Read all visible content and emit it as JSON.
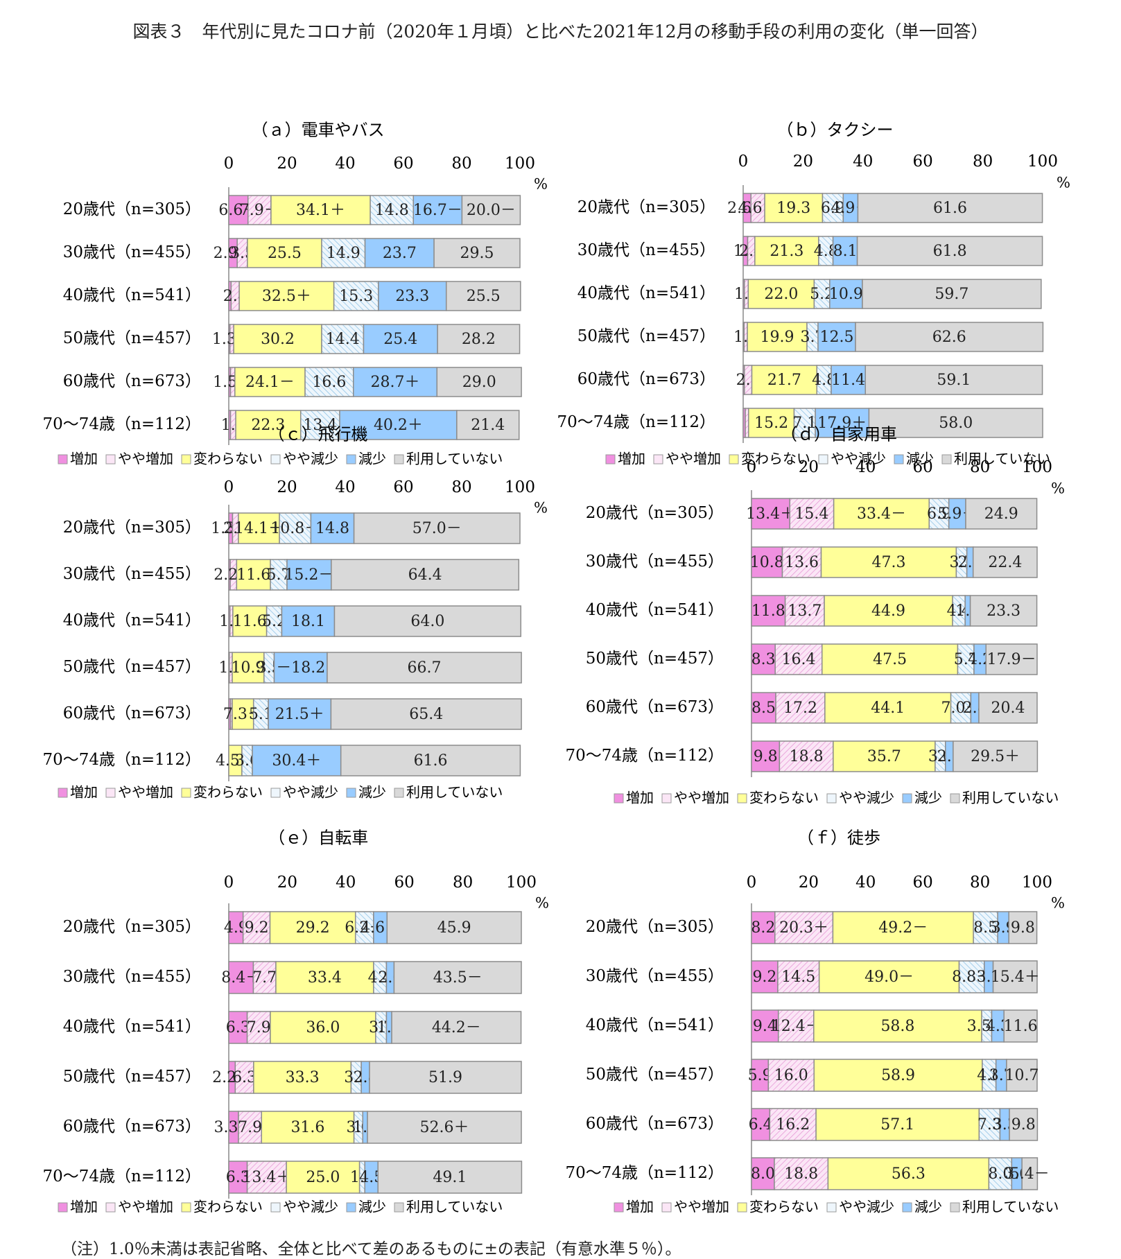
{
  "page_title": "図表３　年代別に見たコロナ前（2020年１月頃）と比べた2021年12月の移動手段の利用の変化（単一回答）",
  "footnote": "（注）1.0％未満は表記省略、全体と比べて差のあるものに±の表記（有意水準５％）。",
  "colors": {
    "increase": "#f090e0",
    "slight_increase": "#f8d8f0",
    "unchanged": "#ffff99",
    "slight_decrease": "#ddeef8",
    "decrease": "#99ccff",
    "not_used": "#d9d9d9"
  },
  "chart_data": [
    {
      "type": "bar",
      "stacked": true,
      "orientation": "horizontal",
      "title": "（ａ）電車やバス",
      "categories": [
        "20歳代（n=305）",
        "30歳代（n=455）",
        "40歳代（n=541）",
        "50歳代（n=457）",
        "60歳代（n=673）",
        "70～74歳（n=112）"
      ],
      "xticks": [
        "0",
        "20",
        "40",
        "60",
        "80",
        "100"
      ],
      "unit": "%",
      "xlim": [
        0,
        100
      ],
      "legend": [
        "増加",
        "やや増加",
        "変わらない",
        "やや減少",
        "減少",
        "利用していない"
      ],
      "series": [
        {
          "name": "増加",
          "values": [
            6.6,
            2.9,
            0.8,
            0.4,
            0.6,
            0.6
          ]
        },
        {
          "name": "やや増加",
          "values": [
            7.9,
            3.5,
            2.8,
            1.3,
            1.5,
            1.8
          ]
        },
        {
          "name": "変わらない",
          "values": [
            34.1,
            25.5,
            32.5,
            30.2,
            24.1,
            22.3
          ]
        },
        {
          "name": "やや減少",
          "values": [
            14.8,
            14.9,
            15.3,
            14.4,
            16.6,
            13.4
          ]
        },
        {
          "name": "減少",
          "values": [
            16.7,
            23.7,
            23.3,
            25.4,
            28.7,
            40.2
          ]
        },
        {
          "name": "利用していない",
          "values": [
            20.0,
            29.5,
            25.5,
            28.2,
            29.0,
            21.4
          ]
        }
      ],
      "labels": [
        [
          "6.6＋",
          "7.9＋",
          "34.1＋",
          "14.8",
          "16.7－",
          "20.0－"
        ],
        [
          "2.9＋",
          "3.5",
          "25.5",
          "14.9",
          "23.7",
          "29.5"
        ],
        [
          "",
          "2.8",
          "32.5＋",
          "15.3",
          "23.3",
          "25.5"
        ],
        [
          "",
          "1.3－",
          "30.2",
          "14.4",
          "25.4",
          "28.2"
        ],
        [
          "",
          "1.5－",
          "24.1－",
          "16.6",
          "28.7＋",
          "29.0"
        ],
        [
          "",
          "1.8",
          "22.3",
          "13.4",
          "40.2＋",
          "21.4"
        ]
      ]
    },
    {
      "type": "bar",
      "stacked": true,
      "orientation": "horizontal",
      "title": "（ｂ）タクシー",
      "categories": [
        "20歳代（n=305）",
        "30歳代（n=455）",
        "40歳代（n=541）",
        "50歳代（n=457）",
        "60歳代（n=673）",
        "70～74歳（n=112）"
      ],
      "xticks": [
        "0",
        "20",
        "40",
        "60",
        "80",
        "100"
      ],
      "unit": "%",
      "xlim": [
        0,
        100
      ],
      "legend": [
        "増加",
        "やや増加",
        "変わらない",
        "やや減少",
        "減少",
        "利用していない"
      ],
      "series": [
        {
          "name": "増加",
          "values": [
            2.6,
            1.5,
            0.4,
            0.3,
            0.4,
            0.7
          ]
        },
        {
          "name": "やや増加",
          "values": [
            4.6,
            2.4,
            1.3,
            1.1,
            2.5,
            1.1
          ]
        },
        {
          "name": "変わらない",
          "values": [
            19.3,
            21.3,
            22.0,
            19.9,
            21.7,
            15.2
          ]
        },
        {
          "name": "やや減少",
          "values": [
            6.9,
            4.8,
            5.2,
            3.7,
            4.8,
            7.1
          ]
        },
        {
          "name": "減少",
          "values": [
            4.9,
            8.1,
            10.9,
            12.5,
            11.4,
            17.9
          ]
        },
        {
          "name": "利用していない",
          "values": [
            61.6,
            61.8,
            59.7,
            62.6,
            59.1,
            58.0
          ]
        }
      ],
      "labels": [
        [
          "2.6＋",
          "4.6＋",
          "19.3",
          "6.9",
          "4.9－",
          "61.6"
        ],
        [
          "1.5",
          "2.4",
          "21.3",
          "4.8",
          "8.1",
          "61.8"
        ],
        [
          "",
          "1.3",
          "22.0",
          "5.2",
          "10.9",
          "59.7"
        ],
        [
          "",
          "1.1",
          "19.9",
          "3.7",
          "12.5",
          "62.6"
        ],
        [
          "",
          "2.5",
          "21.7",
          "4.8",
          "11.4",
          "59.1"
        ],
        [
          "",
          "",
          "15.2",
          "7.1",
          "17.9＋",
          "58.0"
        ]
      ]
    },
    {
      "type": "bar",
      "stacked": true,
      "orientation": "horizontal",
      "title": "（ｃ）飛行機",
      "categories": [
        "20歳代（n=305）",
        "30歳代（n=455）",
        "40歳代（n=541）",
        "50歳代（n=457）",
        "60歳代（n=673）",
        "70～74歳（n=112）"
      ],
      "xticks": [
        "0",
        "20",
        "40",
        "60",
        "80",
        "100"
      ],
      "unit": "%",
      "xlim": [
        0,
        100
      ],
      "legend": [
        "増加",
        "やや増加",
        "変わらない",
        "やや減少",
        "減少",
        "利用していない"
      ],
      "series": [
        {
          "name": "増加",
          "values": [
            1.3,
            0.5,
            0.4,
            0.2,
            0.6,
            0.0
          ]
        },
        {
          "name": "やや増加",
          "values": [
            2.0,
            2.2,
            1.0,
            1.0,
            0.6,
            0.0
          ]
        },
        {
          "name": "変わらない",
          "values": [
            14.1,
            11.6,
            11.6,
            10.9,
            7.3,
            4.5
          ]
        },
        {
          "name": "やや減少",
          "values": [
            10.8,
            5.7,
            5.2,
            3.5,
            5.1,
            3.6
          ]
        },
        {
          "name": "減少",
          "values": [
            14.8,
            15.2,
            18.1,
            18.2,
            21.5,
            30.4
          ]
        },
        {
          "name": "利用していない",
          "values": [
            57.0,
            64.4,
            64.0,
            66.7,
            65.4,
            61.6
          ]
        }
      ],
      "labels": [
        [
          "1.3＋",
          "2.0",
          "14.1＋",
          "10.8＋",
          "14.8",
          "57.0－"
        ],
        [
          "",
          "2.2＋",
          "11.6",
          "5.7",
          "15.2－",
          "64.4"
        ],
        [
          "",
          "1.0",
          "11.6",
          "5.2",
          "18.1",
          "64.0"
        ],
        [
          "",
          "1.0",
          "10.9",
          "3.5",
          "－18.2",
          "66.7"
        ],
        [
          "",
          "",
          "7.3－",
          "5.1",
          "21.5＋",
          "65.4"
        ],
        [
          "",
          "",
          "4.5－",
          "3.6",
          "30.4＋",
          "61.6"
        ]
      ]
    },
    {
      "type": "bar",
      "stacked": true,
      "orientation": "horizontal",
      "title": "（ｄ）自家用車",
      "categories": [
        "20歳代（n=305）",
        "30歳代（n=455）",
        "40歳代（n=541）",
        "50歳代（n=457）",
        "60歳代（n=673）",
        "70～74歳（n=112）"
      ],
      "xticks": [
        "0",
        "20",
        "40",
        "60",
        "80",
        "100"
      ],
      "unit": "%",
      "xlim": [
        0,
        100
      ],
      "legend": [
        "増加",
        "やや増加",
        "変わらない",
        "やや減少",
        "減少",
        "利用していない"
      ],
      "series": [
        {
          "name": "増加",
          "values": [
            13.4,
            10.8,
            11.8,
            8.3,
            8.5,
            9.8
          ]
        },
        {
          "name": "やや増加",
          "values": [
            15.4,
            13.6,
            13.7,
            16.4,
            17.2,
            18.8
          ]
        },
        {
          "name": "変わらない",
          "values": [
            33.4,
            47.3,
            44.9,
            47.5,
            44.1,
            35.7
          ]
        },
        {
          "name": "やや減少",
          "values": [
            6.9,
            3.7,
            4.4,
            5.7,
            7.0,
            3.6
          ]
        },
        {
          "name": "減少",
          "values": [
            5.9,
            2.2,
            1.8,
            4.2,
            2.8,
            2.7
          ]
        },
        {
          "name": "利用していない",
          "values": [
            24.9,
            22.4,
            23.3,
            17.9,
            20.4,
            29.5
          ]
        }
      ],
      "labels": [
        [
          "13.4＋",
          "15.4",
          "33.4－",
          "6.9",
          "5.9＋",
          "24.9"
        ],
        [
          "10.8",
          "13.6",
          "47.3",
          "3.7",
          "2.2",
          "22.4"
        ],
        [
          "11.8",
          "13.7",
          "44.9",
          "4.4",
          "1.8",
          "23.3"
        ],
        [
          "8.3",
          "16.4",
          "47.5",
          "5.7",
          "4.2",
          "17.9－"
        ],
        [
          "8.5",
          "17.2",
          "44.1",
          "7.0＋",
          "2.8",
          "20.4"
        ],
        [
          "9.8",
          "18.8",
          "35.7",
          "3.6",
          "2.7",
          "29.5＋"
        ]
      ]
    },
    {
      "type": "bar",
      "stacked": true,
      "orientation": "horizontal",
      "title": "（ｅ）自転車",
      "categories": [
        "20歳代（n=305）",
        "30歳代（n=455）",
        "40歳代（n=541）",
        "50歳代（n=457）",
        "60歳代（n=673）",
        "70～74歳（n=112）"
      ],
      "xticks": [
        "0",
        "20",
        "40",
        "60",
        "80",
        "100"
      ],
      "unit": "%",
      "xlim": [
        0,
        100
      ],
      "legend": [
        "増加",
        "やや増加",
        "変わらない",
        "やや減少",
        "減少",
        "利用していない"
      ],
      "series": [
        {
          "name": "増加",
          "values": [
            4.9,
            8.4,
            6.3,
            2.2,
            3.3,
            6.3
          ]
        },
        {
          "name": "やや増加",
          "values": [
            9.2,
            7.7,
            7.9,
            6.3,
            7.9,
            13.4
          ]
        },
        {
          "name": "変わらない",
          "values": [
            29.2,
            33.4,
            36.0,
            33.3,
            31.6,
            25.0
          ]
        },
        {
          "name": "やや減少",
          "values": [
            6.2,
            4.4,
            3.7,
            3.5,
            3.0,
            1.8
          ]
        },
        {
          "name": "減少",
          "values": [
            4.6,
            2.6,
            1.8,
            2.8,
            1.6,
            4.5
          ]
        },
        {
          "name": "利用していない",
          "values": [
            45.9,
            43.5,
            44.2,
            51.9,
            52.6,
            49.1
          ]
        }
      ],
      "labels": [
        [
          "4.9",
          "9.2",
          "29.2",
          "6.2＋",
          "4.6＋",
          "45.9"
        ],
        [
          "8.4＋",
          "7.7",
          "33.4",
          "4.4",
          "2.6",
          "43.5－"
        ],
        [
          "6.3",
          "7.9",
          "36.0",
          "3.7",
          "1.8",
          "44.2－"
        ],
        [
          "2.2－",
          "6.3",
          "33.3",
          "3.5",
          "2.8",
          "51.9"
        ],
        [
          "3.3－",
          "7.9",
          "31.6",
          "3.0",
          "1.6",
          "52.6＋"
        ],
        [
          "6.3",
          "13.4＋",
          "25.0",
          "1.8",
          "4.5",
          "49.1"
        ]
      ]
    },
    {
      "type": "bar",
      "stacked": true,
      "orientation": "horizontal",
      "title": "（ｆ）徒歩",
      "categories": [
        "20歳代（n=305）",
        "30歳代（n=455）",
        "40歳代（n=541）",
        "50歳代（n=457）",
        "60歳代（n=673）",
        "70～74歳（n=112）"
      ],
      "xticks": [
        "0",
        "20",
        "40",
        "60",
        "80",
        "100"
      ],
      "unit": "%",
      "xlim": [
        0,
        100
      ],
      "legend": [
        "増加",
        "やや増加",
        "変わらない",
        "やや減少",
        "減少",
        "利用していない"
      ],
      "series": [
        {
          "name": "増加",
          "values": [
            8.2,
            9.2,
            9.4,
            5.9,
            6.4,
            8.0
          ]
        },
        {
          "name": "やや増加",
          "values": [
            20.3,
            14.5,
            12.4,
            16.0,
            16.2,
            18.8
          ]
        },
        {
          "name": "変わらない",
          "values": [
            49.2,
            49.0,
            58.8,
            58.9,
            57.1,
            56.3
          ]
        },
        {
          "name": "やや減少",
          "values": [
            8.5,
            8.8,
            3.5,
            4.8,
            7.3,
            8.0
          ]
        },
        {
          "name": "減少",
          "values": [
            3.9,
            3.1,
            4.3,
            3.7,
            3.3,
            3.6
          ]
        },
        {
          "name": "利用していない",
          "values": [
            9.8,
            15.4,
            11.6,
            10.7,
            9.8,
            5.4
          ]
        }
      ],
      "labels": [
        [
          "8.2",
          "20.3＋",
          "49.2－",
          "8.5",
          "3.9",
          "9.8"
        ],
        [
          "9.2",
          "14.5",
          "49.0－",
          "8.8＋",
          "3.1",
          "15.4＋"
        ],
        [
          "9.4",
          "12.4－",
          "58.8",
          "3.5－",
          "4.3",
          "11.6"
        ],
        [
          "5.9",
          "16.0",
          "58.9",
          "4.8",
          "3.7",
          "10.7"
        ],
        [
          "6.4",
          "16.2",
          "57.1",
          "7.3",
          "3.3",
          "9.8"
        ],
        [
          "8.0",
          "18.8",
          "56.3",
          "8.0",
          "3.6",
          "5.4－"
        ]
      ]
    }
  ]
}
